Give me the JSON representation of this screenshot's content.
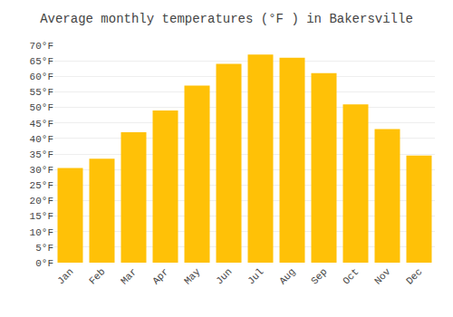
{
  "chart_data": {
    "type": "bar",
    "title": "Average monthly temperatures (°F ) in Bakersville",
    "categories": [
      "Jan",
      "Feb",
      "Mar",
      "Apr",
      "May",
      "Jun",
      "Jul",
      "Aug",
      "Sep",
      "Oct",
      "Nov",
      "Dec"
    ],
    "values": [
      30.5,
      33.5,
      42.0,
      49.0,
      57.0,
      64.0,
      67.0,
      66.0,
      61.0,
      51.0,
      43.0,
      34.5
    ],
    "color": "#FFC107",
    "ylim": [
      0,
      70
    ],
    "yticks": [
      {
        "value": 0,
        "label": "0°F"
      },
      {
        "value": 5,
        "label": "5°F"
      },
      {
        "value": 10,
        "label": "10°F"
      },
      {
        "value": 15,
        "label": "15°F"
      },
      {
        "value": 20,
        "label": "20°F"
      },
      {
        "value": 25,
        "label": "25°F"
      },
      {
        "value": 30,
        "label": "30°F"
      },
      {
        "value": 35,
        "label": "35°F"
      },
      {
        "value": 40,
        "label": "40°F"
      },
      {
        "value": 45,
        "label": "45°F"
      },
      {
        "value": 50,
        "label": "50°F"
      },
      {
        "value": 55,
        "label": "55°F"
      },
      {
        "value": 60,
        "label": "60°F"
      },
      {
        "value": 65,
        "label": "65°F"
      },
      {
        "value": 70,
        "label": "70°F"
      }
    ],
    "grid": true
  }
}
